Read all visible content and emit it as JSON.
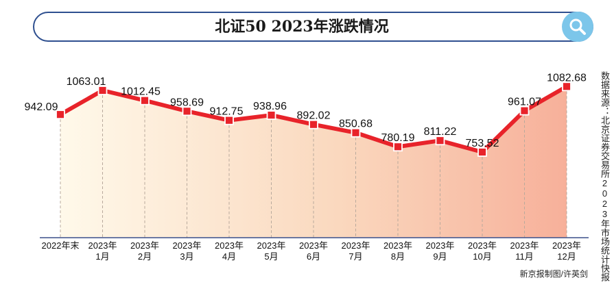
{
  "header": {
    "title": "北证50  2023年涨跌情况"
  },
  "icons": {
    "search": "search-icon"
  },
  "source_note": "数据来源：北京证券交易所2023年市场统计快报",
  "credit": "新京报制图/许英剑",
  "colors": {
    "line": "#e8232a",
    "title_border": "#2e4f8f",
    "search_bg": "#7cc6ea",
    "area_start": "#fff9ea",
    "area_end": "#f7b09a",
    "axis": "#3a4f8a"
  },
  "chart_data": {
    "type": "line",
    "title": "北证50  2023年涨跌情况",
    "categories": [
      [
        "2022年末"
      ],
      [
        "2023年",
        "1月"
      ],
      [
        "2023年",
        "2月"
      ],
      [
        "2023年",
        "3月"
      ],
      [
        "2023年",
        "4月"
      ],
      [
        "2023年",
        "5月"
      ],
      [
        "2023年",
        "6月"
      ],
      [
        "2023年",
        "7月"
      ],
      [
        "2023年",
        "8月"
      ],
      [
        "2023年",
        "9月"
      ],
      [
        "2023年",
        "10月"
      ],
      [
        "2023年",
        "11月"
      ],
      [
        "2023年",
        "12月"
      ]
    ],
    "values": [
      942.09,
      1063.01,
      1012.45,
      958.69,
      912.75,
      938.96,
      892.02,
      850.68,
      780.19,
      811.22,
      753.52,
      961.07,
      1082.68
    ],
    "value_labels": [
      "942.09",
      "1063.01",
      "1012.45",
      "958.69",
      "912.75",
      "938.96",
      "892.02",
      "850.68",
      "780.19",
      "811.22",
      "753.52",
      "961.07",
      "1082.68"
    ],
    "grid": false,
    "legend": "none"
  }
}
